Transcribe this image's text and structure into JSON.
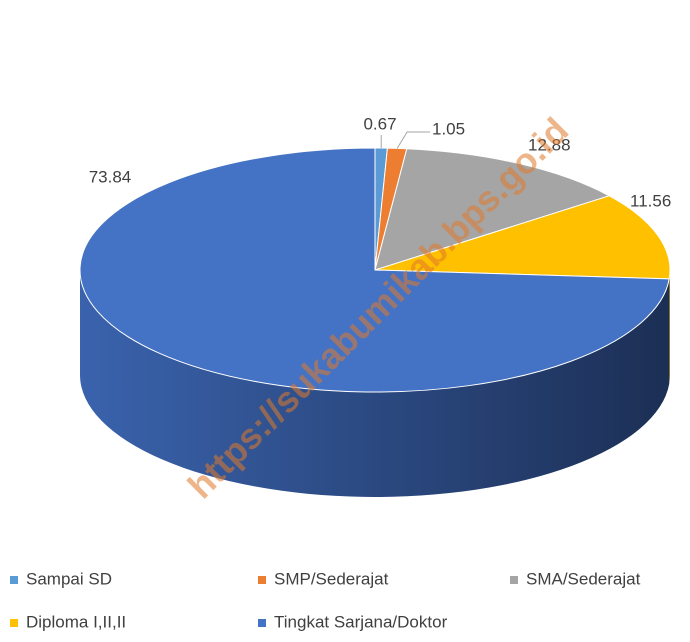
{
  "chart_data": {
    "type": "pie",
    "categories": [
      "Sampai SD",
      "SMP/Sederajat",
      "SMA/Sederajat",
      "Diploma I,II,II",
      "Tingkat Sarjana/Doktor"
    ],
    "values": [
      0.67,
      1.05,
      12.88,
      11.56,
      73.84
    ],
    "colors": [
      "#5b9bd5",
      "#ed7d31",
      "#a5a5a5",
      "#ffc000",
      "#4472c4"
    ],
    "legend": "bottom",
    "watermark": "https://sukabumikab.bps.go.id"
  }
}
